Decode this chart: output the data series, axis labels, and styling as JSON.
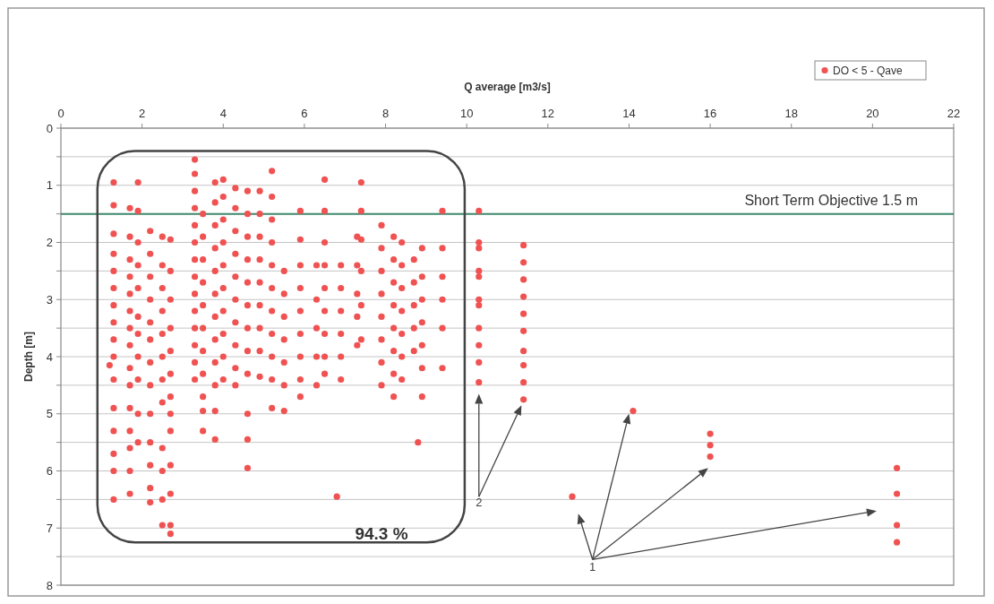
{
  "chart_data": {
    "type": "scatter",
    "xlabel": "Q average [m3/s]",
    "ylabel": "Depth [m]",
    "xlim": [
      0,
      22
    ],
    "xticks": [
      0,
      2,
      4,
      6,
      8,
      10,
      12,
      14,
      16,
      18,
      20,
      22
    ],
    "ylim": [
      8,
      0
    ],
    "yticks": [
      0,
      {
        "value": 0.5,
        "label": null
      },
      1,
      {
        "value": 1.5,
        "label": null
      },
      2,
      {
        "value": 2.5,
        "label": null
      },
      3,
      {
        "value": 3.5,
        "label": null
      },
      4,
      {
        "value": 4.5,
        "label": null
      },
      5,
      {
        "value": 5.5,
        "label": null
      },
      6,
      {
        "value": 6.5,
        "label": null
      },
      7,
      {
        "value": 7.5,
        "label": null
      },
      8
    ],
    "grid": "y",
    "legend": "top right",
    "marker": "circle",
    "ref_lines": [
      {
        "axis": "y",
        "value": 1.5,
        "label": "Short Term Objective 1.5 m",
        "color": "#3f8a6c"
      }
    ],
    "annotations": [
      "94.3 %",
      "2",
      "1"
    ],
    "series": [
      {
        "name": "DO < 5 - Qave",
        "color": "#f05252",
        "x": [
          1.3,
          1.3,
          1.3,
          1.3,
          1.3,
          1.3,
          1.3,
          1.3,
          1.3,
          1.3,
          1.3,
          1.3,
          1.3,
          1.3,
          1.3,
          1.3,
          1.2,
          1.7,
          1.7,
          1.7,
          1.7,
          1.7,
          1.7,
          1.7,
          1.7,
          1.7,
          1.7,
          1.7,
          1.7,
          1.7,
          1.7,
          1.7,
          1.9,
          1.9,
          1.9,
          1.9,
          1.9,
          1.9,
          1.9,
          1.9,
          1.9,
          1.9,
          1.9,
          2.2,
          2.2,
          2.2,
          2.2,
          2.2,
          2.2,
          2.2,
          2.2,
          2.2,
          2.2,
          2.2,
          2.2,
          2.2,
          2.5,
          2.5,
          2.5,
          2.5,
          2.5,
          2.5,
          2.5,
          2.5,
          2.5,
          2.5,
          2.5,
          2.5,
          2.7,
          2.7,
          2.7,
          2.7,
          2.7,
          2.7,
          2.7,
          2.7,
          2.7,
          2.7,
          2.7,
          2.7,
          2.7,
          3.3,
          3.3,
          3.3,
          3.3,
          3.3,
          3.3,
          3.3,
          3.3,
          3.3,
          3.3,
          3.3,
          3.3,
          3.3,
          3.3,
          3.5,
          3.5,
          3.5,
          3.5,
          3.5,
          3.5,
          3.5,
          3.5,
          3.5,
          3.5,
          3.5,
          3.8,
          3.8,
          3.8,
          3.8,
          3.8,
          3.8,
          3.8,
          3.8,
          3.8,
          3.8,
          3.8,
          3.8,
          4.0,
          4.0,
          4.0,
          4.0,
          4.0,
          4.0,
          4.0,
          4.0,
          4.0,
          4.0,
          4.3,
          4.3,
          4.3,
          4.3,
          4.3,
          4.3,
          4.3,
          4.3,
          4.3,
          4.3,
          4.6,
          4.6,
          4.6,
          4.6,
          4.6,
          4.6,
          4.6,
          4.6,
          4.6,
          4.6,
          4.6,
          4.6,
          4.9,
          4.9,
          4.9,
          4.9,
          4.9,
          4.9,
          4.9,
          4.9,
          4.9,
          5.2,
          5.2,
          5.2,
          5.2,
          5.2,
          5.2,
          5.2,
          5.2,
          5.2,
          5.2,
          5.2,
          5.5,
          5.5,
          5.5,
          5.5,
          5.5,
          5.5,
          5.5,
          5.9,
          5.9,
          5.9,
          5.9,
          5.9,
          5.9,
          5.9,
          5.9,
          5.9,
          6.3,
          6.3,
          6.3,
          6.3,
          6.3,
          6.5,
          6.5,
          6.5,
          6.5,
          6.5,
          6.5,
          6.5,
          6.5,
          6.5,
          6.9,
          6.9,
          6.9,
          6.9,
          6.9,
          6.9,
          7.3,
          7.3,
          7.3,
          7.3,
          7.3,
          7.4,
          7.4,
          7.4,
          7.4,
          7.4,
          7.4,
          7.9,
          7.9,
          7.9,
          7.9,
          7.9,
          7.9,
          7.9,
          7.9,
          8.2,
          8.2,
          8.2,
          8.2,
          8.2,
          8.2,
          8.2,
          8.2,
          8.4,
          8.4,
          8.4,
          8.4,
          8.4,
          8.4,
          8.4,
          8.7,
          8.7,
          8.7,
          8.7,
          8.7,
          8.9,
          8.9,
          8.9,
          8.9,
          8.9,
          8.9,
          8.9,
          9.4,
          9.4,
          9.4,
          9.4,
          9.4,
          9.4,
          8.8,
          6.8,
          10.3,
          10.3,
          10.3,
          10.3,
          10.3,
          10.3,
          10.3,
          10.3,
          10.3,
          10.3,
          10.3,
          11.4,
          11.4,
          11.4,
          11.4,
          11.4,
          11.4,
          11.4,
          11.4,
          11.4,
          11.4,
          14.1,
          16.0,
          16.0,
          16.0,
          12.6,
          20.6,
          20.6,
          20.6,
          20.6
        ],
        "values": [
          0.95,
          1.35,
          1.85,
          2.2,
          2.5,
          2.8,
          3.1,
          3.4,
          3.7,
          4.0,
          4.4,
          4.9,
          5.3,
          5.7,
          6.0,
          6.5,
          4.15,
          1.4,
          1.9,
          2.3,
          2.6,
          2.9,
          3.2,
          3.5,
          3.8,
          4.2,
          4.5,
          4.9,
          5.3,
          5.6,
          6.0,
          6.4,
          0.95,
          1.45,
          2.0,
          2.4,
          2.8,
          3.3,
          3.6,
          4.0,
          4.4,
          5.0,
          5.5,
          1.8,
          2.2,
          2.6,
          3.0,
          3.4,
          3.7,
          4.1,
          4.5,
          5.0,
          5.5,
          5.9,
          6.3,
          6.55,
          1.9,
          2.4,
          2.8,
          3.2,
          3.6,
          4.0,
          4.4,
          4.8,
          5.6,
          6.0,
          6.5,
          6.95,
          1.95,
          2.5,
          3.0,
          3.5,
          3.9,
          4.3,
          4.7,
          5.0,
          5.3,
          5.9,
          6.4,
          6.95,
          7.1,
          0.55,
          0.8,
          1.1,
          1.4,
          1.7,
          2.0,
          2.3,
          2.6,
          2.9,
          3.2,
          3.5,
          3.8,
          4.1,
          4.4,
          1.5,
          1.9,
          2.3,
          2.7,
          3.1,
          3.5,
          3.9,
          4.3,
          4.7,
          4.95,
          5.3,
          0.95,
          1.3,
          1.7,
          2.1,
          2.5,
          2.9,
          3.3,
          3.7,
          4.1,
          4.5,
          4.95,
          5.45,
          0.9,
          1.2,
          1.6,
          2.0,
          2.4,
          2.8,
          3.2,
          3.6,
          4.0,
          4.4,
          1.05,
          1.4,
          1.8,
          2.2,
          2.6,
          3.0,
          3.4,
          3.8,
          4.2,
          4.5,
          1.1,
          1.5,
          1.9,
          2.3,
          2.7,
          3.1,
          3.5,
          3.9,
          4.3,
          5.0,
          5.45,
          5.95,
          1.1,
          1.5,
          1.9,
          2.3,
          2.7,
          3.1,
          3.5,
          3.9,
          4.35,
          0.75,
          1.2,
          1.6,
          2.0,
          2.4,
          2.8,
          3.2,
          3.6,
          4.0,
          4.4,
          4.9,
          2.5,
          2.9,
          3.3,
          3.7,
          4.1,
          4.5,
          4.95,
          1.45,
          1.95,
          2.4,
          2.8,
          3.2,
          3.6,
          4.0,
          4.4,
          4.7,
          2.4,
          3.0,
          3.5,
          4.0,
          4.5,
          0.9,
          1.45,
          2.0,
          2.4,
          2.8,
          3.2,
          3.6,
          4.0,
          4.3,
          2.4,
          2.8,
          3.2,
          3.6,
          4.0,
          4.4,
          1.9,
          2.4,
          2.9,
          3.3,
          3.8,
          0.95,
          1.45,
          1.95,
          2.5,
          3.1,
          3.7,
          1.7,
          2.1,
          2.5,
          2.9,
          3.3,
          3.7,
          4.1,
          4.5,
          1.9,
          2.3,
          2.7,
          3.1,
          3.5,
          3.9,
          4.3,
          4.7,
          2.0,
          2.4,
          2.8,
          3.2,
          3.6,
          4.0,
          4.4,
          2.3,
          2.7,
          3.1,
          3.5,
          3.9,
          2.1,
          2.6,
          3.0,
          3.4,
          3.8,
          4.2,
          4.7,
          1.45,
          2.1,
          2.6,
          3.0,
          3.5,
          4.2,
          5.5,
          6.45,
          1.45,
          2.0,
          2.1,
          2.5,
          2.6,
          3.0,
          3.1,
          3.5,
          3.8,
          4.1,
          4.45,
          2.05,
          2.35,
          2.65,
          2.95,
          3.25,
          3.55,
          3.9,
          4.15,
          4.45,
          4.75,
          4.95,
          5.35,
          5.55,
          5.75,
          6.45,
          5.95,
          6.4,
          6.95,
          7.25
        ]
      }
    ]
  }
}
